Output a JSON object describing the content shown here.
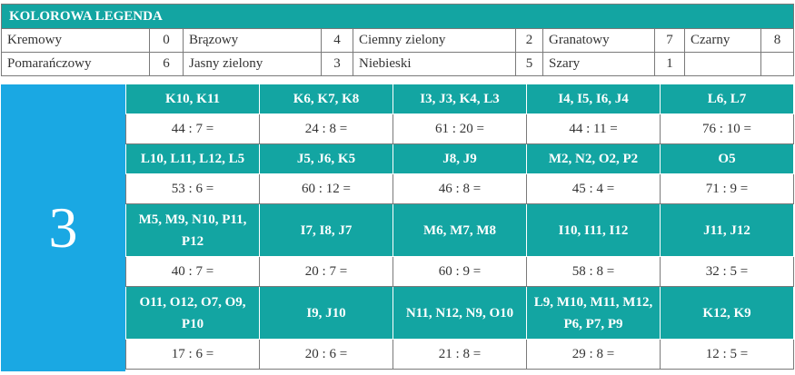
{
  "legend": {
    "title": "KOLOROWA LEGENDA",
    "rows": [
      [
        {
          "name": "Kremowy",
          "num": "0"
        },
        {
          "name": "Brązowy",
          "num": "4"
        },
        {
          "name": "Ciemny zielony",
          "num": "2"
        },
        {
          "name": "Granatowy",
          "num": "7"
        },
        {
          "name": "Czarny",
          "num": "8"
        }
      ],
      [
        {
          "name": "Pomarańczowy",
          "num": "6"
        },
        {
          "name": "Jasny zielony",
          "num": "3"
        },
        {
          "name": "Niebieski",
          "num": "5"
        },
        {
          "name": "Szary",
          "num": "1"
        },
        {
          "name": "",
          "num": ""
        }
      ]
    ]
  },
  "task": {
    "number": "3",
    "rows": [
      {
        "cells": [
          "K10, K11",
          "K6, K7, K8",
          "I3, J3, K4, L3",
          "I4, I5, I6, J4",
          "L6, L7"
        ],
        "equations": [
          "44 : 7 =",
          "24 : 8 =",
          "61 : 20 =",
          "44 : 11 =",
          "76 : 10 ="
        ]
      },
      {
        "cells": [
          "L10, L11, L12, L5",
          "J5, J6, K5",
          "J8, J9",
          "M2, N2, O2, P2",
          "O5"
        ],
        "equations": [
          "53 : 6 =",
          "60 : 12 =",
          "46 : 8 =",
          "45 : 4 =",
          "71 : 9 ="
        ]
      },
      {
        "cells": [
          "M5, M9, N10, P11, P12",
          "I7, I8, J7",
          "M6, M7, M8",
          "I10, I11, I12",
          "J11, J12"
        ],
        "equations": [
          "40 : 7 =",
          "20 : 7 =",
          "60 : 9 =",
          "58 : 8 =",
          "32 : 5 ="
        ]
      },
      {
        "cells": [
          "O11, O12, O7, O9, P10",
          "I9, J10",
          "N11, N12, N9, O10",
          "L9, M10, M11, M12, P6, P7, P9",
          "K12, K9"
        ],
        "equations": [
          "17 : 6 =",
          "20 : 6 =",
          "21 : 8 =",
          "29 : 8 =",
          "12 : 5 ="
        ]
      }
    ]
  },
  "colors": {
    "teal": "#13a5a2",
    "blue": "#1aa8e3",
    "text": "#333333"
  }
}
